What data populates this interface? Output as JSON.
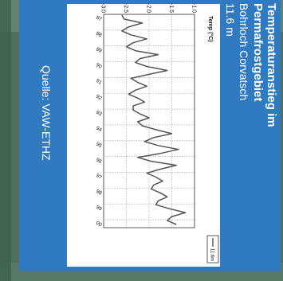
{
  "panel": {
    "title_line1": "Temperaturanstieg im",
    "title_line2": "Permafrostgebiet",
    "subtitle_line1": "Bohrloch Corvatsch",
    "subtitle_line2": "11.6 m",
    "source": "Quelle: VAW-ETHZ"
  },
  "colors": {
    "panel_blue": "#2f7ac0",
    "plot_bg": "#ffffff",
    "line": "#555555",
    "grid": "#999999"
  },
  "chart_data": {
    "type": "line",
    "title": "",
    "ylabel": "Temp (°C)",
    "xlabel": "",
    "ylim": [
      -3.0,
      -1.0
    ],
    "xlim": [
      1987,
      2000.5
    ],
    "yticks": [
      "-3.0",
      "-2.5",
      "-2.0",
      "-1.5",
      "-1.0"
    ],
    "xticks": [
      "87",
      "88",
      "89",
      "90",
      "91",
      "92",
      "93",
      "94",
      "95",
      "96",
      "97",
      "98",
      "99",
      "00"
    ],
    "grid": true,
    "legend_position": "top-right",
    "series": [
      {
        "name": "11.6m",
        "x": [
          1987.05,
          1987.3,
          1987.55,
          1987.8,
          1988.05,
          1988.3,
          1988.55,
          1988.8,
          1989.05,
          1989.3,
          1989.55,
          1989.8,
          1990.05,
          1990.3,
          1990.55,
          1990.8,
          1991.05,
          1991.3,
          1991.55,
          1991.8,
          1992.05,
          1992.3,
          1992.55,
          1992.8,
          1993.05,
          1993.3,
          1993.55,
          1993.8,
          1994.05,
          1994.3,
          1994.55,
          1994.8,
          1995.05,
          1995.3,
          1995.55,
          1995.8,
          1996.05,
          1996.3,
          1996.55,
          1996.8,
          1997.05,
          1997.3,
          1997.55,
          1997.8,
          1998.05,
          1998.3,
          1998.55,
          1998.8,
          1999.05,
          1999.3,
          1999.55,
          1999.8,
          2000.05,
          2000.3
        ],
        "values": [
          -2.6,
          -2.55,
          -2.15,
          -2.45,
          -2.6,
          -2.4,
          -2.05,
          -2.35,
          -2.5,
          -2.3,
          -1.8,
          -2.2,
          -2.3,
          -2.05,
          -1.6,
          -2.0,
          -2.4,
          -2.25,
          -2.05,
          -2.3,
          -2.45,
          -2.25,
          -2.1,
          -2.35,
          -2.35,
          -2.2,
          -2.0,
          -2.25,
          -2.15,
          -1.85,
          -1.5,
          -1.9,
          -2.1,
          -1.8,
          -1.35,
          -1.75,
          -2.25,
          -1.95,
          -1.4,
          -1.75,
          -2.05,
          -1.85,
          -1.7,
          -1.9,
          -1.95,
          -1.75,
          -1.6,
          -1.8,
          -1.85,
          -1.55,
          -1.2,
          -1.5,
          -1.6,
          -1.4
        ]
      }
    ]
  }
}
